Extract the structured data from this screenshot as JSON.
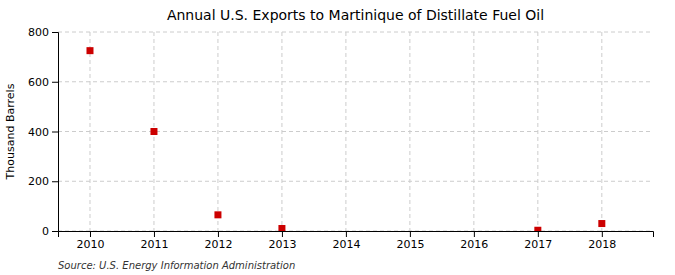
{
  "chart_data": {
    "type": "scatter",
    "title": "Annual U.S. Exports to Martinique of Distillate Fuel Oil",
    "ylabel": "Thousand Barrels",
    "annotation": "Source: U.S. Energy Information Administration",
    "x": [
      2010,
      2011,
      2012,
      2013,
      2017,
      2018
    ],
    "values": [
      725,
      400,
      65,
      10,
      3,
      30
    ],
    "xlim": [
      2009.5,
      2018.8
    ],
    "xticks": [
      2010,
      2011,
      2012,
      2013,
      2014,
      2015,
      2016,
      2017,
      2018
    ],
    "ylim": [
      0,
      800
    ],
    "yticks": [
      0,
      200,
      400,
      600,
      800
    ],
    "color": "#cc0000",
    "marker": "square",
    "grid": true
  }
}
